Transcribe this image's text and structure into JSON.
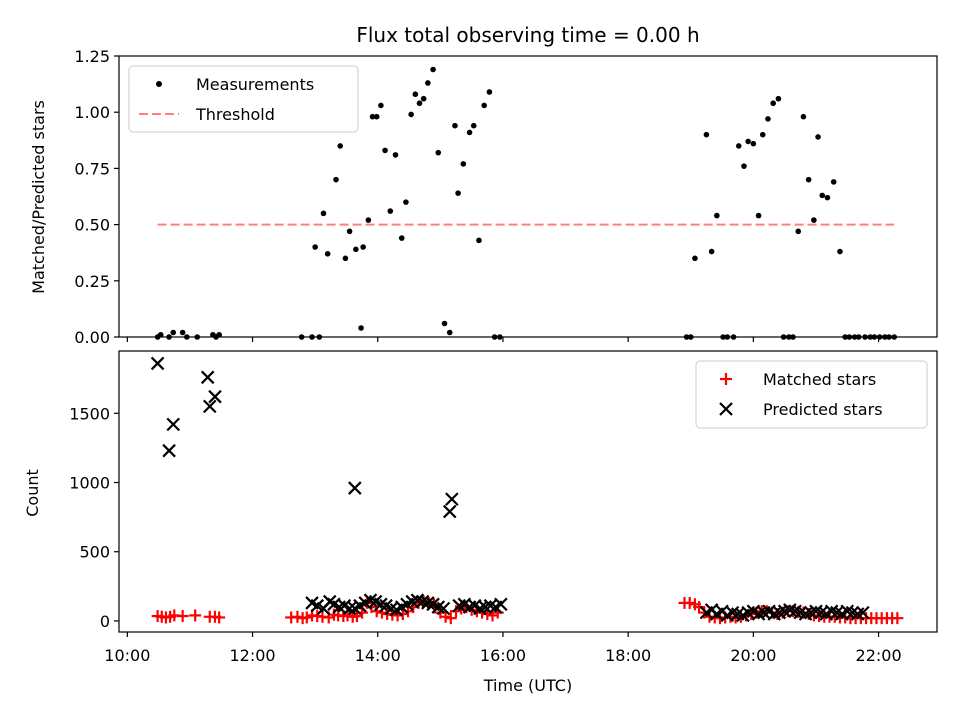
{
  "chart_data": [
    {
      "type": "scatter",
      "title": "Flux total observing time = 0.00 h",
      "xlabel": "",
      "ylabel": "Matched/Predicted stars",
      "xlim": [
        "09:52",
        "22:56"
      ],
      "ylim": [
        0,
        1.25
      ],
      "grid": false,
      "legend": "top-left",
      "xticks": [
        "10:00",
        "12:00",
        "14:00",
        "16:00",
        "18:00",
        "20:00",
        "22:00"
      ],
      "yticks": [
        "0.00",
        "0.25",
        "0.50",
        "0.75",
        "1.00",
        "1.25"
      ],
      "ytick_values": [
        0,
        0.25,
        0.5,
        0.75,
        1.0,
        1.25
      ],
      "series": [
        {
          "name": "Measurements",
          "marker": "dot",
          "color": "#000000",
          "x": [
            "10:29",
            "10:32",
            "10:40",
            "10:44",
            "10:53",
            "10:57",
            "11:07",
            "11:22",
            "11:25",
            "11:28",
            "12:47",
            "12:57",
            "13:00",
            "13:04",
            "13:08",
            "13:12",
            "13:20",
            "13:24",
            "13:29",
            "13:33",
            "13:39",
            "13:44",
            "13:46",
            "13:51",
            "13:55",
            "13:59",
            "14:03",
            "14:07",
            "14:12",
            "14:17",
            "14:23",
            "14:27",
            "14:32",
            "14:36",
            "14:40",
            "14:44",
            "14:48",
            "14:53",
            "14:58",
            "15:04",
            "15:09",
            "15:14",
            "15:17",
            "15:22",
            "15:28",
            "15:32",
            "15:37",
            "15:42",
            "15:47",
            "15:52",
            "15:57",
            "18:56",
            "19:00",
            "19:04",
            "19:15",
            "19:20",
            "19:25",
            "19:31",
            "19:35",
            "19:41",
            "19:46",
            "19:51",
            "19:55",
            "20:00",
            "20:05",
            "20:09",
            "20:14",
            "20:19",
            "20:24",
            "20:29",
            "20:34",
            "20:38",
            "20:43",
            "20:48",
            "20:53",
            "20:58",
            "21:02",
            "21:06",
            "21:11",
            "21:17",
            "21:23",
            "21:28",
            "21:32",
            "21:37",
            "21:41",
            "21:47",
            "21:52",
            "21:56",
            "22:01",
            "22:06",
            "22:10",
            "22:15"
          ],
          "y": [
            0.0,
            0.01,
            0.0,
            0.02,
            0.02,
            0.0,
            0.0,
            0.01,
            0.0,
            0.01,
            0.0,
            0.0,
            0.4,
            0.0,
            0.55,
            0.37,
            0.7,
            0.85,
            0.35,
            0.47,
            0.39,
            0.04,
            0.4,
            0.52,
            0.98,
            0.98,
            1.03,
            0.83,
            0.56,
            0.81,
            0.44,
            0.6,
            0.99,
            1.08,
            1.04,
            1.06,
            1.13,
            1.19,
            0.82,
            0.06,
            0.02,
            0.94,
            0.64,
            0.77,
            0.91,
            0.94,
            0.43,
            1.03,
            1.09,
            0.0,
            0.0,
            0.0,
            0.0,
            0.35,
            0.9,
            0.38,
            0.54,
            0.0,
            0.0,
            0.0,
            0.85,
            0.76,
            0.87,
            0.86,
            0.54,
            0.9,
            0.97,
            1.04,
            1.06,
            0.0,
            0.0,
            0.0,
            0.47,
            0.98,
            0.7,
            0.52,
            0.89,
            0.63,
            0.62,
            0.69,
            0.38,
            0.0,
            0.0,
            0.0,
            0.0,
            0.0,
            0.0,
            0.0,
            0.0,
            0.0,
            0.0,
            0.0
          ]
        },
        {
          "name": "Threshold",
          "style": "dashed",
          "color": "#ff7f7f",
          "x": [
            "10:29",
            "22:15"
          ],
          "y": [
            0.5,
            0.5
          ]
        }
      ]
    },
    {
      "type": "scatter",
      "title": "",
      "xlabel": "Time (UTC)",
      "ylabel": "Count",
      "xlim": [
        "09:52",
        "22:56"
      ],
      "ylim": [
        -80,
        1950
      ],
      "grid": false,
      "legend": "top-right",
      "xticks": [
        "10:00",
        "12:00",
        "14:00",
        "16:00",
        "18:00",
        "20:00",
        "22:00"
      ],
      "yticks": [
        "0",
        "500",
        "1000",
        "1500"
      ],
      "ytick_values": [
        0,
        500,
        1000,
        1500
      ],
      "series": [
        {
          "name": "Matched stars",
          "marker": "plus",
          "color": "#ff0000",
          "x": [
            "10:29",
            "10:33",
            "10:37",
            "10:41",
            "10:45",
            "10:53",
            "11:05",
            "11:19",
            "11:24",
            "11:28",
            "12:37",
            "12:43",
            "12:48",
            "12:52",
            "12:57",
            "13:02",
            "13:07",
            "13:13",
            "13:18",
            "13:22",
            "13:27",
            "13:31",
            "13:36",
            "13:40",
            "13:45",
            "13:50",
            "13:54",
            "13:59",
            "14:04",
            "14:09",
            "14:14",
            "14:19",
            "14:24",
            "14:29",
            "14:34",
            "14:39",
            "14:44",
            "14:49",
            "14:54",
            "15:00",
            "15:05",
            "15:10",
            "15:15",
            "15:20",
            "15:25",
            "15:30",
            "15:35",
            "15:40",
            "15:45",
            "15:50",
            "15:55",
            "18:54",
            "18:59",
            "19:04",
            "19:08",
            "19:13",
            "19:18",
            "19:23",
            "19:28",
            "19:33",
            "19:38",
            "19:43",
            "19:48",
            "19:53",
            "19:58",
            "20:03",
            "20:08",
            "20:13",
            "20:18",
            "20:23",
            "20:28",
            "20:33",
            "20:38",
            "20:43",
            "20:48",
            "20:53",
            "20:58",
            "21:03",
            "21:08",
            "21:13",
            "21:18",
            "21:23",
            "21:28",
            "21:33",
            "21:38",
            "21:43",
            "21:48",
            "21:53",
            "21:58",
            "22:03",
            "22:08",
            "22:13",
            "22:18"
          ],
          "y": [
            35,
            30,
            25,
            30,
            40,
            35,
            40,
            30,
            30,
            25,
            25,
            30,
            20,
            25,
            40,
            35,
            30,
            25,
            45,
            40,
            35,
            40,
            30,
            35,
            60,
            130,
            100,
            70,
            60,
            50,
            45,
            40,
            50,
            70,
            100,
            130,
            140,
            130,
            120,
            60,
            30,
            20,
            70,
            90,
            100,
            80,
            70,
            60,
            50,
            40,
            60,
            130,
            130,
            120,
            100,
            60,
            30,
            25,
            20,
            25,
            30,
            25,
            30,
            40,
            50,
            60,
            70,
            70,
            60,
            50,
            60,
            70,
            70,
            65,
            60,
            50,
            40,
            35,
            30,
            30,
            30,
            25,
            25,
            20,
            20,
            20,
            20,
            20,
            20,
            20,
            20,
            20,
            20
          ]
        },
        {
          "name": "Predicted stars",
          "marker": "x",
          "color": "#000000",
          "x": [
            "10:29",
            "10:40",
            "10:44",
            "11:17",
            "11:19",
            "11:24",
            "12:57",
            "13:02",
            "13:08",
            "13:14",
            "13:18",
            "13:23",
            "13:28",
            "13:33",
            "13:38",
            "13:38",
            "13:43",
            "13:48",
            "13:53",
            "13:58",
            "14:03",
            "14:08",
            "14:13",
            "14:18",
            "14:23",
            "14:28",
            "14:33",
            "14:38",
            "14:43",
            "14:48",
            "14:53",
            "14:58",
            "15:03",
            "15:09",
            "15:11",
            "15:18",
            "15:23",
            "15:28",
            "15:33",
            "15:38",
            "15:43",
            "15:48",
            "15:53",
            "15:58",
            "19:15",
            "19:20",
            "19:25",
            "19:30",
            "19:35",
            "19:40",
            "19:45",
            "19:50",
            "19:55",
            "20:00",
            "20:05",
            "20:10",
            "20:15",
            "20:20",
            "20:25",
            "20:30",
            "20:35",
            "20:40",
            "20:45",
            "20:50",
            "20:55",
            "21:00",
            "21:05",
            "21:10",
            "21:15",
            "21:20",
            "21:25",
            "21:30",
            "21:35",
            "21:40",
            "21:45"
          ],
          "y": [
            1860,
            1230,
            1420,
            1760,
            1550,
            1620,
            130,
            110,
            90,
            140,
            120,
            100,
            110,
            90,
            960,
            90,
            110,
            130,
            150,
            140,
            120,
            110,
            90,
            80,
            100,
            120,
            140,
            150,
            140,
            130,
            120,
            100,
            90,
            790,
            880,
            110,
            120,
            100,
            110,
            90,
            100,
            110,
            100,
            120,
            60,
            80,
            50,
            70,
            40,
            60,
            50,
            40,
            60,
            70,
            50,
            60,
            70,
            50,
            60,
            70,
            80,
            70,
            60,
            50,
            60,
            70,
            60,
            50,
            70,
            60,
            50,
            70,
            60,
            50,
            60
          ]
        }
      ]
    }
  ]
}
